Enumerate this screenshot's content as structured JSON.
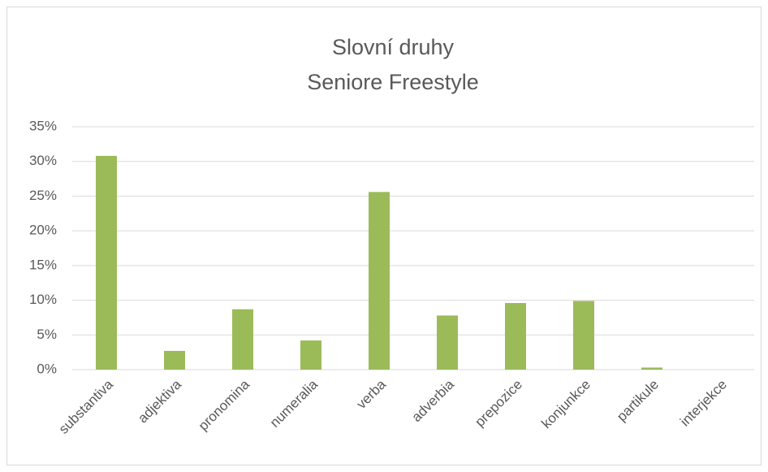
{
  "chart_data": {
    "type": "bar",
    "title": "Slovní druhy",
    "subtitle": "Seniore Freestyle",
    "categories": [
      "substantiva",
      "adjektiva",
      "pronomina",
      "numeralia",
      "verba",
      "adverbia",
      "prepozice",
      "konjunkce",
      "partikule",
      "interjekce"
    ],
    "values": [
      30.8,
      2.7,
      8.7,
      4.2,
      25.6,
      7.8,
      9.6,
      9.9,
      0.3,
      0
    ],
    "color": "#9bbb59",
    "ylim": [
      0,
      35
    ],
    "yticks": [
      {
        "value": 0,
        "label": "0%"
      },
      {
        "value": 5,
        "label": "5%"
      },
      {
        "value": 10,
        "label": "10%"
      },
      {
        "value": 15,
        "label": "15%"
      },
      {
        "value": 20,
        "label": "20%"
      },
      {
        "value": 25,
        "label": "25%"
      },
      {
        "value": 30,
        "label": "30%"
      },
      {
        "value": 35,
        "label": "35%"
      }
    ],
    "grid": true
  }
}
